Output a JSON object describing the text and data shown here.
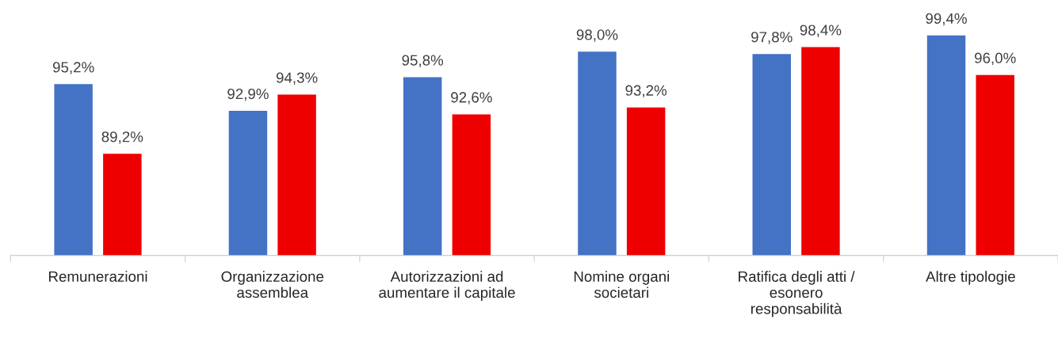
{
  "chart_data": {
    "type": "bar",
    "categories": [
      "Remunerazioni",
      "Organizzazione\nassemblea",
      "Autorizzazioni ad\naumentare il capitale",
      "Nomine organi\nsocietari",
      "Ratifica degli atti /\nesonero\nresponsabilità",
      "Altre tipologie"
    ],
    "series": [
      {
        "color": "#4472c4",
        "values": [
          95.2,
          92.9,
          95.8,
          98.0,
          97.8,
          99.4
        ],
        "value_labels": [
          "95,2%",
          "92,9%",
          "95,8%",
          "98,0%",
          "97,8%",
          "99,4%"
        ]
      },
      {
        "color": "#ee0000",
        "values": [
          89.2,
          94.3,
          92.6,
          93.2,
          98.4,
          96.0
        ],
        "value_labels": [
          "89,2%",
          "94,3%",
          "92,6%",
          "93,2%",
          "98,4%",
          "96,0%"
        ]
      }
    ],
    "tick_labels": "x",
    "legend": false
  }
}
